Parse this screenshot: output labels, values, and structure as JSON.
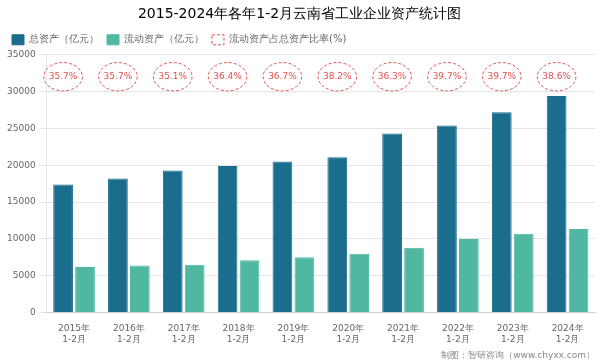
{
  "chart_data": {
    "type": "bar",
    "title": "2015-2024年各年1-2月云南省工业企业资产统计图",
    "footer": "制图：智研咨询（www.chyxx.com）",
    "categories": [
      "2015年\n1-2月",
      "2016年\n1-2月",
      "2017年\n1-2月",
      "2018年\n1-2月",
      "2019年\n1-2月",
      "2020年\n1-2月",
      "2021年\n1-2月",
      "2022年\n1-2月",
      "2023年\n1-2月",
      "2024年\n1-2月"
    ],
    "series": [
      {
        "name": "总资产（亿元）",
        "color": "#1b6d8e",
        "values": [
          17400,
          18200,
          19300,
          19900,
          20500,
          21100,
          24300,
          25400,
          27200,
          29400
        ]
      },
      {
        "name": "流动资产（亿元）",
        "color": "#50b8a0",
        "values": [
          6200,
          6400,
          6500,
          7100,
          7500,
          8000,
          8800,
          10000,
          10700,
          11350
        ]
      },
      {
        "name": "流动资产占总资产比率(%)",
        "type": "label",
        "color": "#e05050",
        "line_style": "dashed",
        "values": [
          35.7,
          35.7,
          35.1,
          36.4,
          36.7,
          38.2,
          36.3,
          39.7,
          39.7,
          38.6
        ],
        "value_labels": [
          "35.7%",
          "35.7%",
          "35.1%",
          "36.4%",
          "36.7%",
          "38.2%",
          "36.3%",
          "39.7%",
          "39.7%",
          "38.6%"
        ]
      }
    ],
    "ylim": [
      0,
      35000
    ],
    "yticks": [
      0,
      5000,
      10000,
      15000,
      20000,
      25000,
      30000,
      35000
    ],
    "grid": true,
    "legend": "upper left"
  }
}
